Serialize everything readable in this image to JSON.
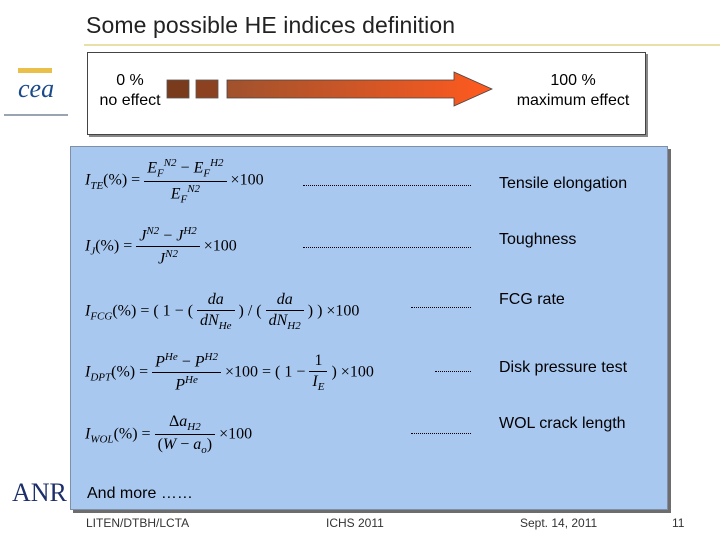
{
  "title": "Some possible HE indices definition",
  "logo": {
    "text": "cea"
  },
  "effect_scale": {
    "left_pct": "0 %",
    "left_text": "no effect",
    "right_pct": "100 %",
    "right_text": "maximum effect"
  },
  "indices": [
    {
      "label": "Tensile elongation"
    },
    {
      "label": "Toughness"
    },
    {
      "label": "FCG rate"
    },
    {
      "label": "Disk pressure test"
    },
    {
      "label": "WOL crack length"
    }
  ],
  "more": "And more ……",
  "anr_logo": "ANR",
  "footer": {
    "org": "LITEN/DTBH/LCTA",
    "conf": "ICHS 2011",
    "date": "Sept. 14, 2011",
    "page": "11"
  },
  "colors": {
    "title_rule": "#e8e0a8",
    "formula_bg": "#a9c8f0",
    "arrow_start": "#a0522d",
    "arrow_end": "#ff5a1f"
  }
}
